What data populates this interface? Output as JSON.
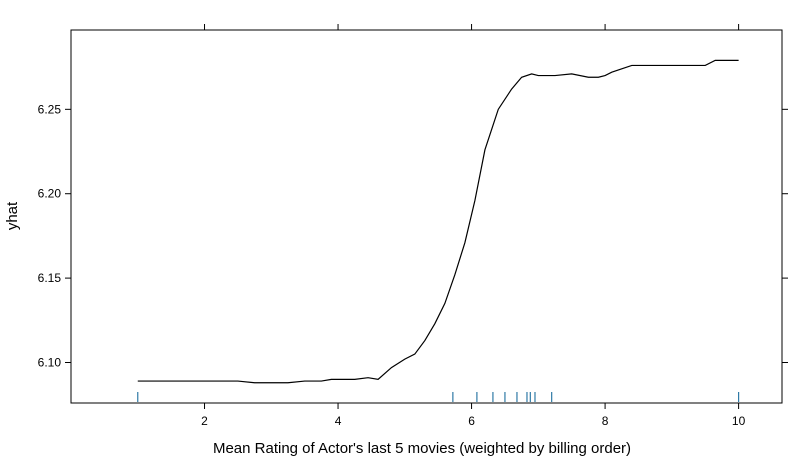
{
  "chart_data": {
    "type": "line",
    "title": "",
    "xlabel": "Mean Rating of Actor's last 5 movies (weighted by billing order)",
    "ylabel": "yhat",
    "xlim": [
      0.0,
      10.65
    ],
    "ylim": [
      6.076,
      6.297
    ],
    "x_ticks": [
      2,
      4,
      6,
      8,
      10
    ],
    "x_tick_labels": [
      "2",
      "4",
      "6",
      "8",
      "10"
    ],
    "y_ticks": [
      6.1,
      6.15,
      6.2,
      6.25
    ],
    "y_tick_labels": [
      "6.10",
      "6.15",
      "6.20",
      "6.25"
    ],
    "grid": false,
    "line_color": "#000000",
    "rug_color": "#2f7aa6",
    "series": [
      {
        "x": [
          1.0,
          1.5,
          2.0,
          2.5,
          2.75,
          3.0,
          3.25,
          3.5,
          3.75,
          3.9,
          4.0,
          4.25,
          4.45,
          4.6,
          4.8,
          5.0,
          5.15,
          5.3,
          5.45,
          5.6,
          5.75,
          5.9,
          6.05,
          6.2,
          6.4,
          6.6,
          6.75,
          6.9,
          7.0,
          7.25,
          7.5,
          7.75,
          7.9,
          8.0,
          8.1,
          8.25,
          8.4,
          9.0,
          9.5,
          9.65,
          10.0
        ],
        "y": [
          6.089,
          6.089,
          6.089,
          6.089,
          6.088,
          6.088,
          6.088,
          6.089,
          6.089,
          6.09,
          6.09,
          6.09,
          6.091,
          6.09,
          6.097,
          6.102,
          6.105,
          6.113,
          6.123,
          6.135,
          6.152,
          6.171,
          6.196,
          6.226,
          6.25,
          6.262,
          6.269,
          6.271,
          6.27,
          6.27,
          6.271,
          6.269,
          6.269,
          6.27,
          6.272,
          6.274,
          6.276,
          6.276,
          6.276,
          6.279,
          6.279
        ]
      }
    ],
    "rug_x": [
      1.0,
      5.72,
      6.08,
      6.32,
      6.5,
      6.68,
      6.83,
      6.88,
      6.95,
      7.2,
      10.0
    ]
  }
}
